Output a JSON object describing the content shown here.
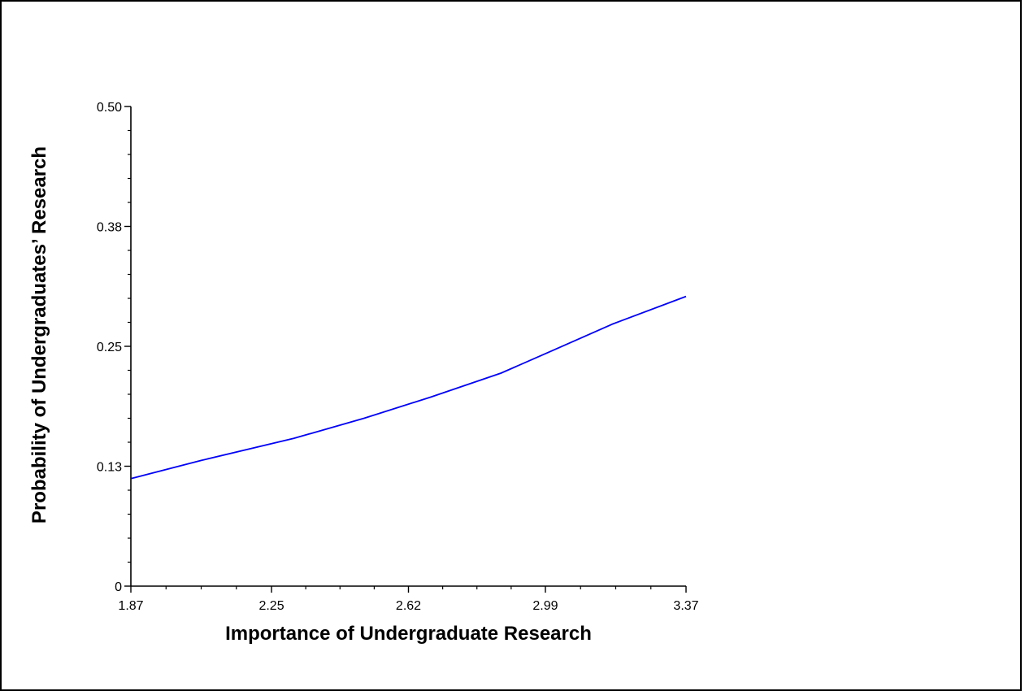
{
  "chart_data": {
    "type": "line",
    "title": "",
    "xlabel": "Importance of Undergraduate Research",
    "ylabel": "Probability of Undergraduates’ Research",
    "xlim": [
      1.87,
      3.37
    ],
    "ylim": [
      0,
      0.5
    ],
    "x_ticks": [
      1.87,
      2.25,
      2.62,
      2.99,
      3.37
    ],
    "x_tick_labels": [
      "1.87",
      "2.25",
      "2.62",
      "2.99",
      "3.37"
    ],
    "y_ticks": [
      0,
      0.125,
      0.25,
      0.375,
      0.5
    ],
    "y_tick_labels": [
      "0",
      "0.13",
      "0.25",
      "0.38",
      "0.50"
    ],
    "x_minor_per_major": 3,
    "y_minor_per_major": 4,
    "grid": false,
    "legend": "none",
    "line_color": "#0000ff",
    "series": [
      {
        "x": [
          1.87,
          2.06,
          2.31,
          2.5,
          2.68,
          2.87,
          3.0,
          3.17,
          3.37
        ],
        "y": [
          0.112,
          0.131,
          0.154,
          0.175,
          0.197,
          0.222,
          0.244,
          0.273,
          0.302
        ]
      }
    ]
  }
}
